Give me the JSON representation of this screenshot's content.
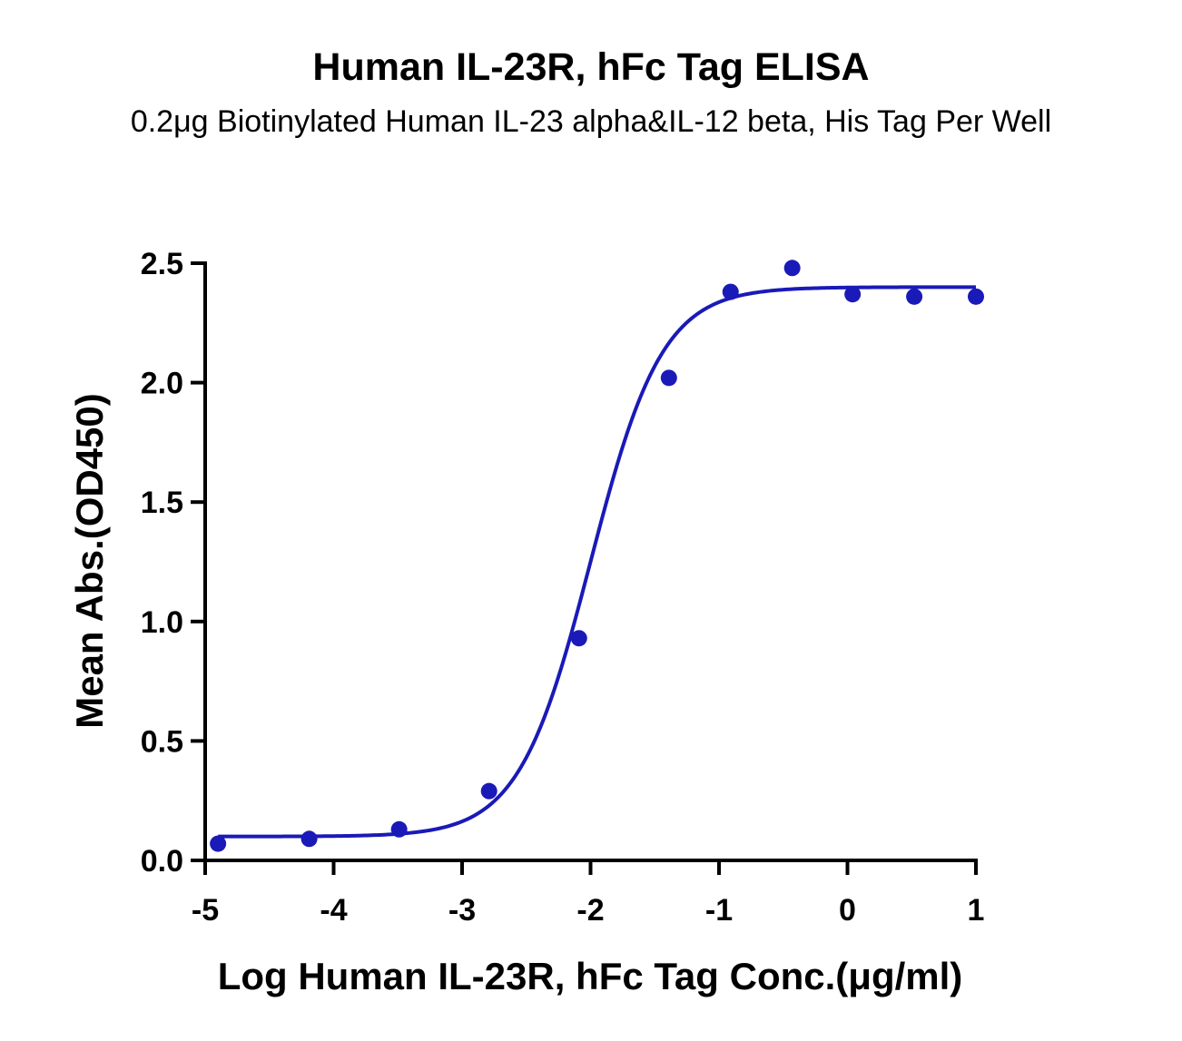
{
  "chart_data": {
    "type": "scatter",
    "title": "Human IL-23R, hFc Tag ELISA",
    "subtitle": "0.2μg Biotinylated Human IL-23 alpha&IL-12 beta, His Tag Per Well",
    "xlabel": "Log Human IL-23R, hFc Tag Conc.(μg/ml)",
    "ylabel": "Mean Abs.(OD450)",
    "xlim": [
      -5,
      1
    ],
    "ylim": [
      0,
      2.5
    ],
    "xticks": [
      -5,
      -4,
      -3,
      -2,
      -1,
      0,
      1
    ],
    "xtick_labels": [
      "-5",
      "-4",
      "-3",
      "-2",
      "-1",
      "0",
      "1"
    ],
    "yticks": [
      0,
      0.5,
      1.0,
      1.5,
      2.0,
      2.5
    ],
    "ytick_labels": [
      "0.0",
      "0.5",
      "1.0",
      "1.5",
      "2.0",
      "2.5"
    ],
    "color": "#1a1ab8",
    "grid": false,
    "series": [
      {
        "points": [
          {
            "x": -4.9,
            "y": 0.07
          },
          {
            "x": -4.19,
            "y": 0.09
          },
          {
            "x": -3.49,
            "y": 0.13
          },
          {
            "x": -2.79,
            "y": 0.29
          },
          {
            "x": -2.09,
            "y": 0.93
          },
          {
            "x": -1.39,
            "y": 2.02
          },
          {
            "x": -0.91,
            "y": 2.38
          },
          {
            "x": -0.43,
            "y": 2.48
          },
          {
            "x": 0.04,
            "y": 2.37
          },
          {
            "x": 0.52,
            "y": 2.36
          },
          {
            "x": 1.0,
            "y": 2.36
          }
        ],
        "fit": {
          "model": "4PL",
          "bottom": 0.1,
          "top": 2.4,
          "logEC50": -2.0,
          "hill": 1.55,
          "x_range": [
            -4.9,
            1.0
          ]
        }
      }
    ]
  }
}
